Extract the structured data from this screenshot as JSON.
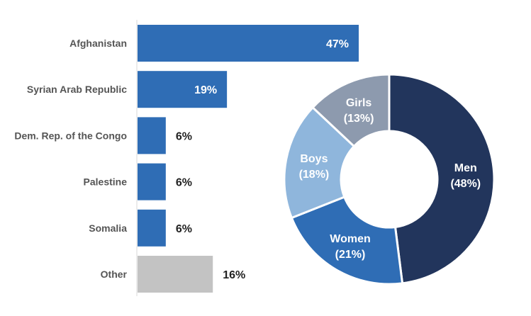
{
  "chart_data": [
    {
      "type": "bar",
      "orientation": "horizontal",
      "categories": [
        "Afghanistan",
        "Syrian Arab Republic",
        "Dem. Rep. of the Congo",
        "Palestine",
        "Somalia",
        "Other"
      ],
      "values": [
        47,
        19,
        6,
        6,
        6,
        16
      ],
      "value_labels": [
        "47%",
        "19%",
        "6%",
        "6%",
        "6%",
        "16%"
      ],
      "unit": "%",
      "bar_colors": [
        "#2f6db5",
        "#2f6db5",
        "#2f6db5",
        "#2f6db5",
        "#2f6db5",
        "#c3c3c3"
      ],
      "value_label_colors": [
        "#ffffff",
        "#ffffff",
        "#222222",
        "#222222",
        "#222222",
        "#222222"
      ],
      "grid": false
    },
    {
      "type": "pie",
      "style": "donut",
      "slices": [
        {
          "label": "Men",
          "value": 48,
          "value_label": "(48%)",
          "color": "#22355c"
        },
        {
          "label": "Women",
          "value": 21,
          "value_label": "(21%)",
          "color": "#2f6db5"
        },
        {
          "label": "Boys",
          "value": 18,
          "value_label": "(18%)",
          "color": "#8fb6dc"
        },
        {
          "label": "Girls",
          "value": 13,
          "value_label": "(13%)",
          "color": "#8d9aae"
        }
      ]
    }
  ]
}
